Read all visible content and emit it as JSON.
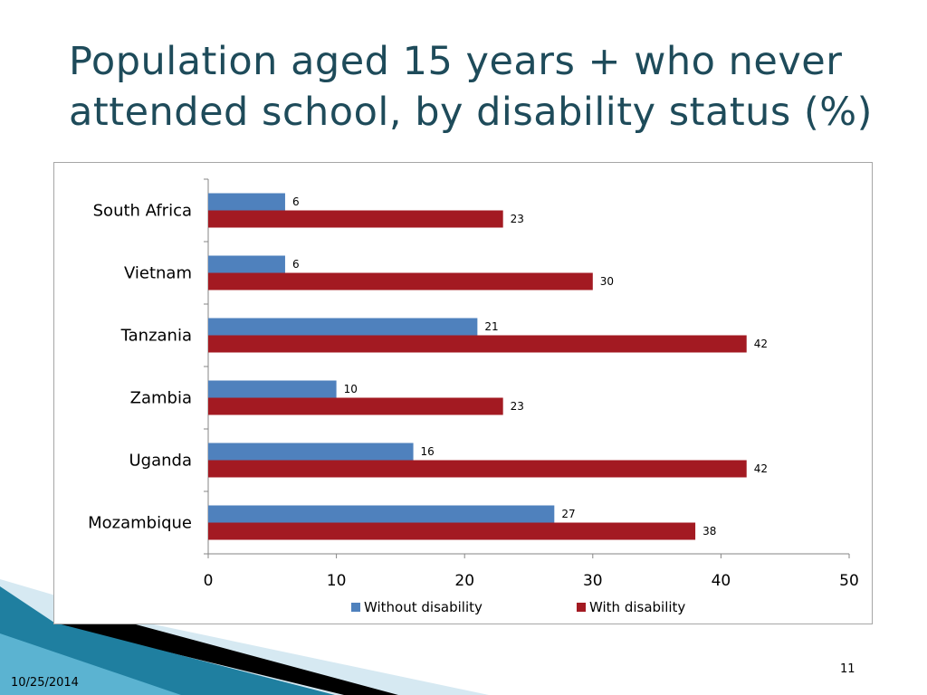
{
  "slide": {
    "title": "Population aged 15 years + who never attended school, by disability status (%)",
    "date": "10/25/2014",
    "page_number": "11"
  },
  "colors": {
    "title": "#1e4b5a",
    "without_disability": "#4f81bd",
    "with_disability": "#a31a22",
    "decor_teal": "#1f7fa0",
    "decor_light": "#bfe0ec"
  },
  "chart_data": {
    "type": "bar",
    "orientation": "horizontal",
    "categories": [
      "South Africa",
      "Vietnam",
      "Tanzania",
      "Zambia",
      "Uganda",
      "Mozambique"
    ],
    "series": [
      {
        "name": "Without disability",
        "values": [
          6,
          6,
          21,
          10,
          16,
          27
        ]
      },
      {
        "name": "With disability",
        "values": [
          23,
          30,
          42,
          23,
          42,
          38
        ]
      }
    ],
    "data_labels": [
      [
        "6",
        "6",
        "21",
        "10",
        "16",
        "27"
      ],
      [
        "23",
        "30",
        "42",
        "23",
        "42",
        "38"
      ]
    ],
    "x_ticks": [
      "0",
      "10",
      "20",
      "30",
      "40",
      "50"
    ],
    "xlim": [
      0,
      50
    ],
    "grid": false,
    "legend_position": "bottom"
  }
}
